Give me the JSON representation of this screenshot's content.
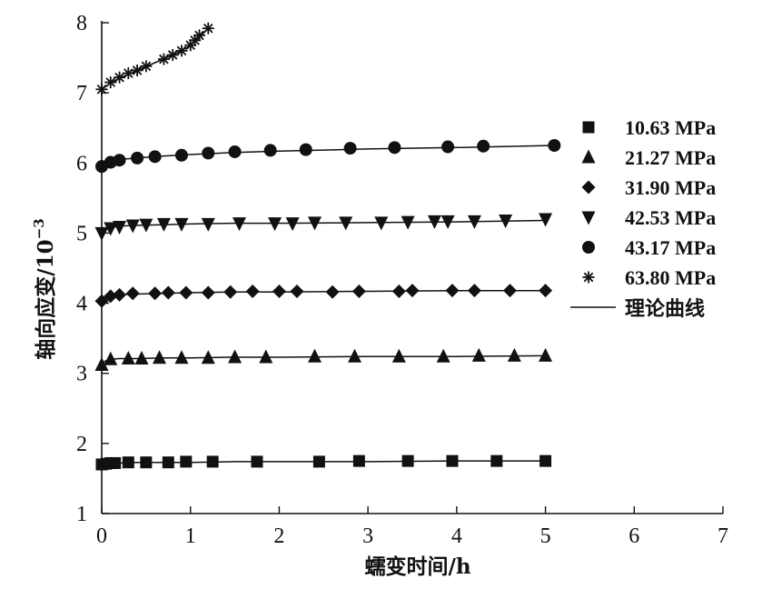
{
  "chart_data": {
    "type": "scatter",
    "title": "",
    "xlabel": "蠕变时间/h",
    "ylabel": "轴向应变/10",
    "ylabel_exponent": "−3",
    "xlim": [
      0,
      7
    ],
    "ylim": [
      1,
      8
    ],
    "x_ticks": [
      0,
      1,
      2,
      3,
      4,
      5,
      6,
      7
    ],
    "y_ticks": [
      1,
      2,
      3,
      4,
      5,
      6,
      7,
      8
    ],
    "grid": false,
    "legend_position": "right",
    "fit_label": "理论曲线",
    "series": [
      {
        "name": "10.63 MPa",
        "marker": "square",
        "x": [
          0.0,
          0.05,
          0.1,
          0.15,
          0.3,
          0.5,
          0.75,
          0.95,
          1.25,
          1.75,
          2.45,
          2.9,
          3.45,
          3.95,
          4.45,
          5.0
        ],
        "y": [
          1.7,
          1.71,
          1.72,
          1.72,
          1.73,
          1.73,
          1.73,
          1.74,
          1.74,
          1.74,
          1.74,
          1.75,
          1.75,
          1.75,
          1.75,
          1.75
        ],
        "fit_x": [
          0,
          0.02,
          0.05,
          0.1,
          0.2,
          0.4,
          0.7,
          1.0,
          1.5,
          2.0,
          3.0,
          4.0,
          5.0
        ],
        "fit_y": [
          1.7,
          1.71,
          1.71,
          1.72,
          1.72,
          1.73,
          1.73,
          1.73,
          1.74,
          1.74,
          1.74,
          1.75,
          1.75
        ]
      },
      {
        "name": "21.27 MPa",
        "marker": "triangle",
        "x": [
          0.0,
          0.1,
          0.3,
          0.45,
          0.65,
          0.9,
          1.2,
          1.5,
          1.85,
          2.4,
          2.85,
          3.35,
          3.85,
          4.25,
          4.65,
          5.0
        ],
        "y": [
          3.12,
          3.2,
          3.21,
          3.21,
          3.22,
          3.22,
          3.22,
          3.23,
          3.23,
          3.24,
          3.24,
          3.24,
          3.24,
          3.25,
          3.25,
          3.25
        ],
        "fit_x": [
          0,
          0.02,
          0.05,
          0.1,
          0.2,
          0.4,
          0.7,
          1.0,
          1.5,
          2.0,
          3.0,
          4.0,
          5.0
        ],
        "fit_y": [
          3.12,
          3.16,
          3.18,
          3.2,
          3.21,
          3.21,
          3.22,
          3.22,
          3.23,
          3.23,
          3.24,
          3.24,
          3.25
        ]
      },
      {
        "name": "31.90 MPa",
        "marker": "diamond",
        "x": [
          0.0,
          0.1,
          0.2,
          0.35,
          0.6,
          0.75,
          0.95,
          1.2,
          1.45,
          1.7,
          2.0,
          2.2,
          2.6,
          2.9,
          3.35,
          3.5,
          3.95,
          4.2,
          4.6,
          5.0
        ],
        "y": [
          4.03,
          4.1,
          4.12,
          4.14,
          4.14,
          4.15,
          4.15,
          4.15,
          4.16,
          4.17,
          4.17,
          4.17,
          4.16,
          4.17,
          4.17,
          4.18,
          4.18,
          4.18,
          4.18,
          4.18
        ],
        "fit_x": [
          0,
          0.02,
          0.05,
          0.1,
          0.2,
          0.4,
          0.7,
          1.0,
          1.5,
          2.0,
          3.0,
          4.0,
          5.0
        ],
        "fit_y": [
          4.03,
          4.07,
          4.09,
          4.11,
          4.12,
          4.13,
          4.14,
          4.15,
          4.16,
          4.16,
          4.17,
          4.18,
          4.18
        ]
      },
      {
        "name": "42.53 MPa",
        "marker": "triangle-down",
        "x": [
          0.0,
          0.1,
          0.2,
          0.35,
          0.5,
          0.7,
          0.9,
          1.2,
          1.55,
          1.95,
          2.15,
          2.4,
          2.75,
          3.15,
          3.45,
          3.75,
          3.9,
          4.2,
          4.55,
          5.0
        ],
        "y": [
          5.0,
          5.07,
          5.09,
          5.11,
          5.12,
          5.13,
          5.13,
          5.13,
          5.14,
          5.14,
          5.14,
          5.15,
          5.15,
          5.15,
          5.16,
          5.17,
          5.17,
          5.17,
          5.18,
          5.2
        ],
        "fit_x": [
          0,
          0.02,
          0.05,
          0.1,
          0.2,
          0.4,
          0.7,
          1.0,
          1.5,
          2.0,
          3.0,
          4.0,
          5.0
        ],
        "fit_y": [
          5.0,
          5.04,
          5.06,
          5.08,
          5.1,
          5.11,
          5.12,
          5.13,
          5.14,
          5.14,
          5.15,
          5.16,
          5.18
        ]
      },
      {
        "name": "43.17 MPa",
        "marker": "circle",
        "x": [
          0.0,
          0.1,
          0.2,
          0.4,
          0.6,
          0.9,
          1.2,
          1.5,
          1.9,
          2.3,
          2.8,
          3.3,
          3.9,
          4.3,
          5.1
        ],
        "y": [
          5.95,
          6.01,
          6.04,
          6.07,
          6.09,
          6.11,
          6.14,
          6.16,
          6.18,
          6.19,
          6.21,
          6.22,
          6.23,
          6.24,
          6.25
        ],
        "fit_x": [
          0,
          0.02,
          0.05,
          0.1,
          0.2,
          0.4,
          0.7,
          1.0,
          1.5,
          2.0,
          3.0,
          4.0,
          5.1
        ],
        "fit_y": [
          5.95,
          5.99,
          6.01,
          6.03,
          6.05,
          6.07,
          6.1,
          6.12,
          6.15,
          6.17,
          6.2,
          6.22,
          6.25
        ]
      },
      {
        "name": "63.80 MPa",
        "marker": "asterisk",
        "x": [
          0.0,
          0.1,
          0.2,
          0.3,
          0.4,
          0.5,
          0.7,
          0.8,
          0.9,
          1.0,
          1.05,
          1.1,
          1.2
        ],
        "y": [
          7.05,
          7.15,
          7.22,
          7.28,
          7.32,
          7.38,
          7.48,
          7.54,
          7.6,
          7.68,
          7.75,
          7.82,
          7.92
        ],
        "fit_x": [
          0,
          0.1,
          0.2,
          0.4,
          0.6,
          0.8,
          0.9,
          1.0,
          1.1,
          1.2
        ],
        "fit_y": [
          7.05,
          7.14,
          7.21,
          7.32,
          7.43,
          7.54,
          7.6,
          7.68,
          7.79,
          7.92
        ]
      }
    ]
  }
}
